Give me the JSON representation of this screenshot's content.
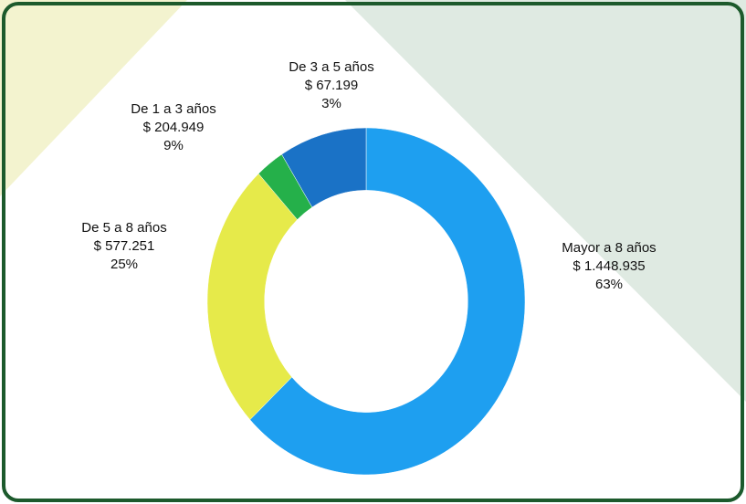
{
  "chart_data": {
    "type": "donut",
    "categories": [
      "Mayor a 8 años",
      "De 5 a 8 años",
      "De 3 a 5 años",
      "De 1 a 3 años"
    ],
    "values": [
      1448935,
      577251,
      67199,
      204949
    ],
    "value_labels": [
      "$ 1.448.935",
      "$ 577.251",
      "$ 67.199",
      "$ 204.949"
    ],
    "percent_labels": [
      "63%",
      "25%",
      "3%",
      "9%"
    ],
    "colors": [
      "#1e9ff0",
      "#e6ea4a",
      "#25b04a",
      "#1a72c6"
    ]
  }
}
